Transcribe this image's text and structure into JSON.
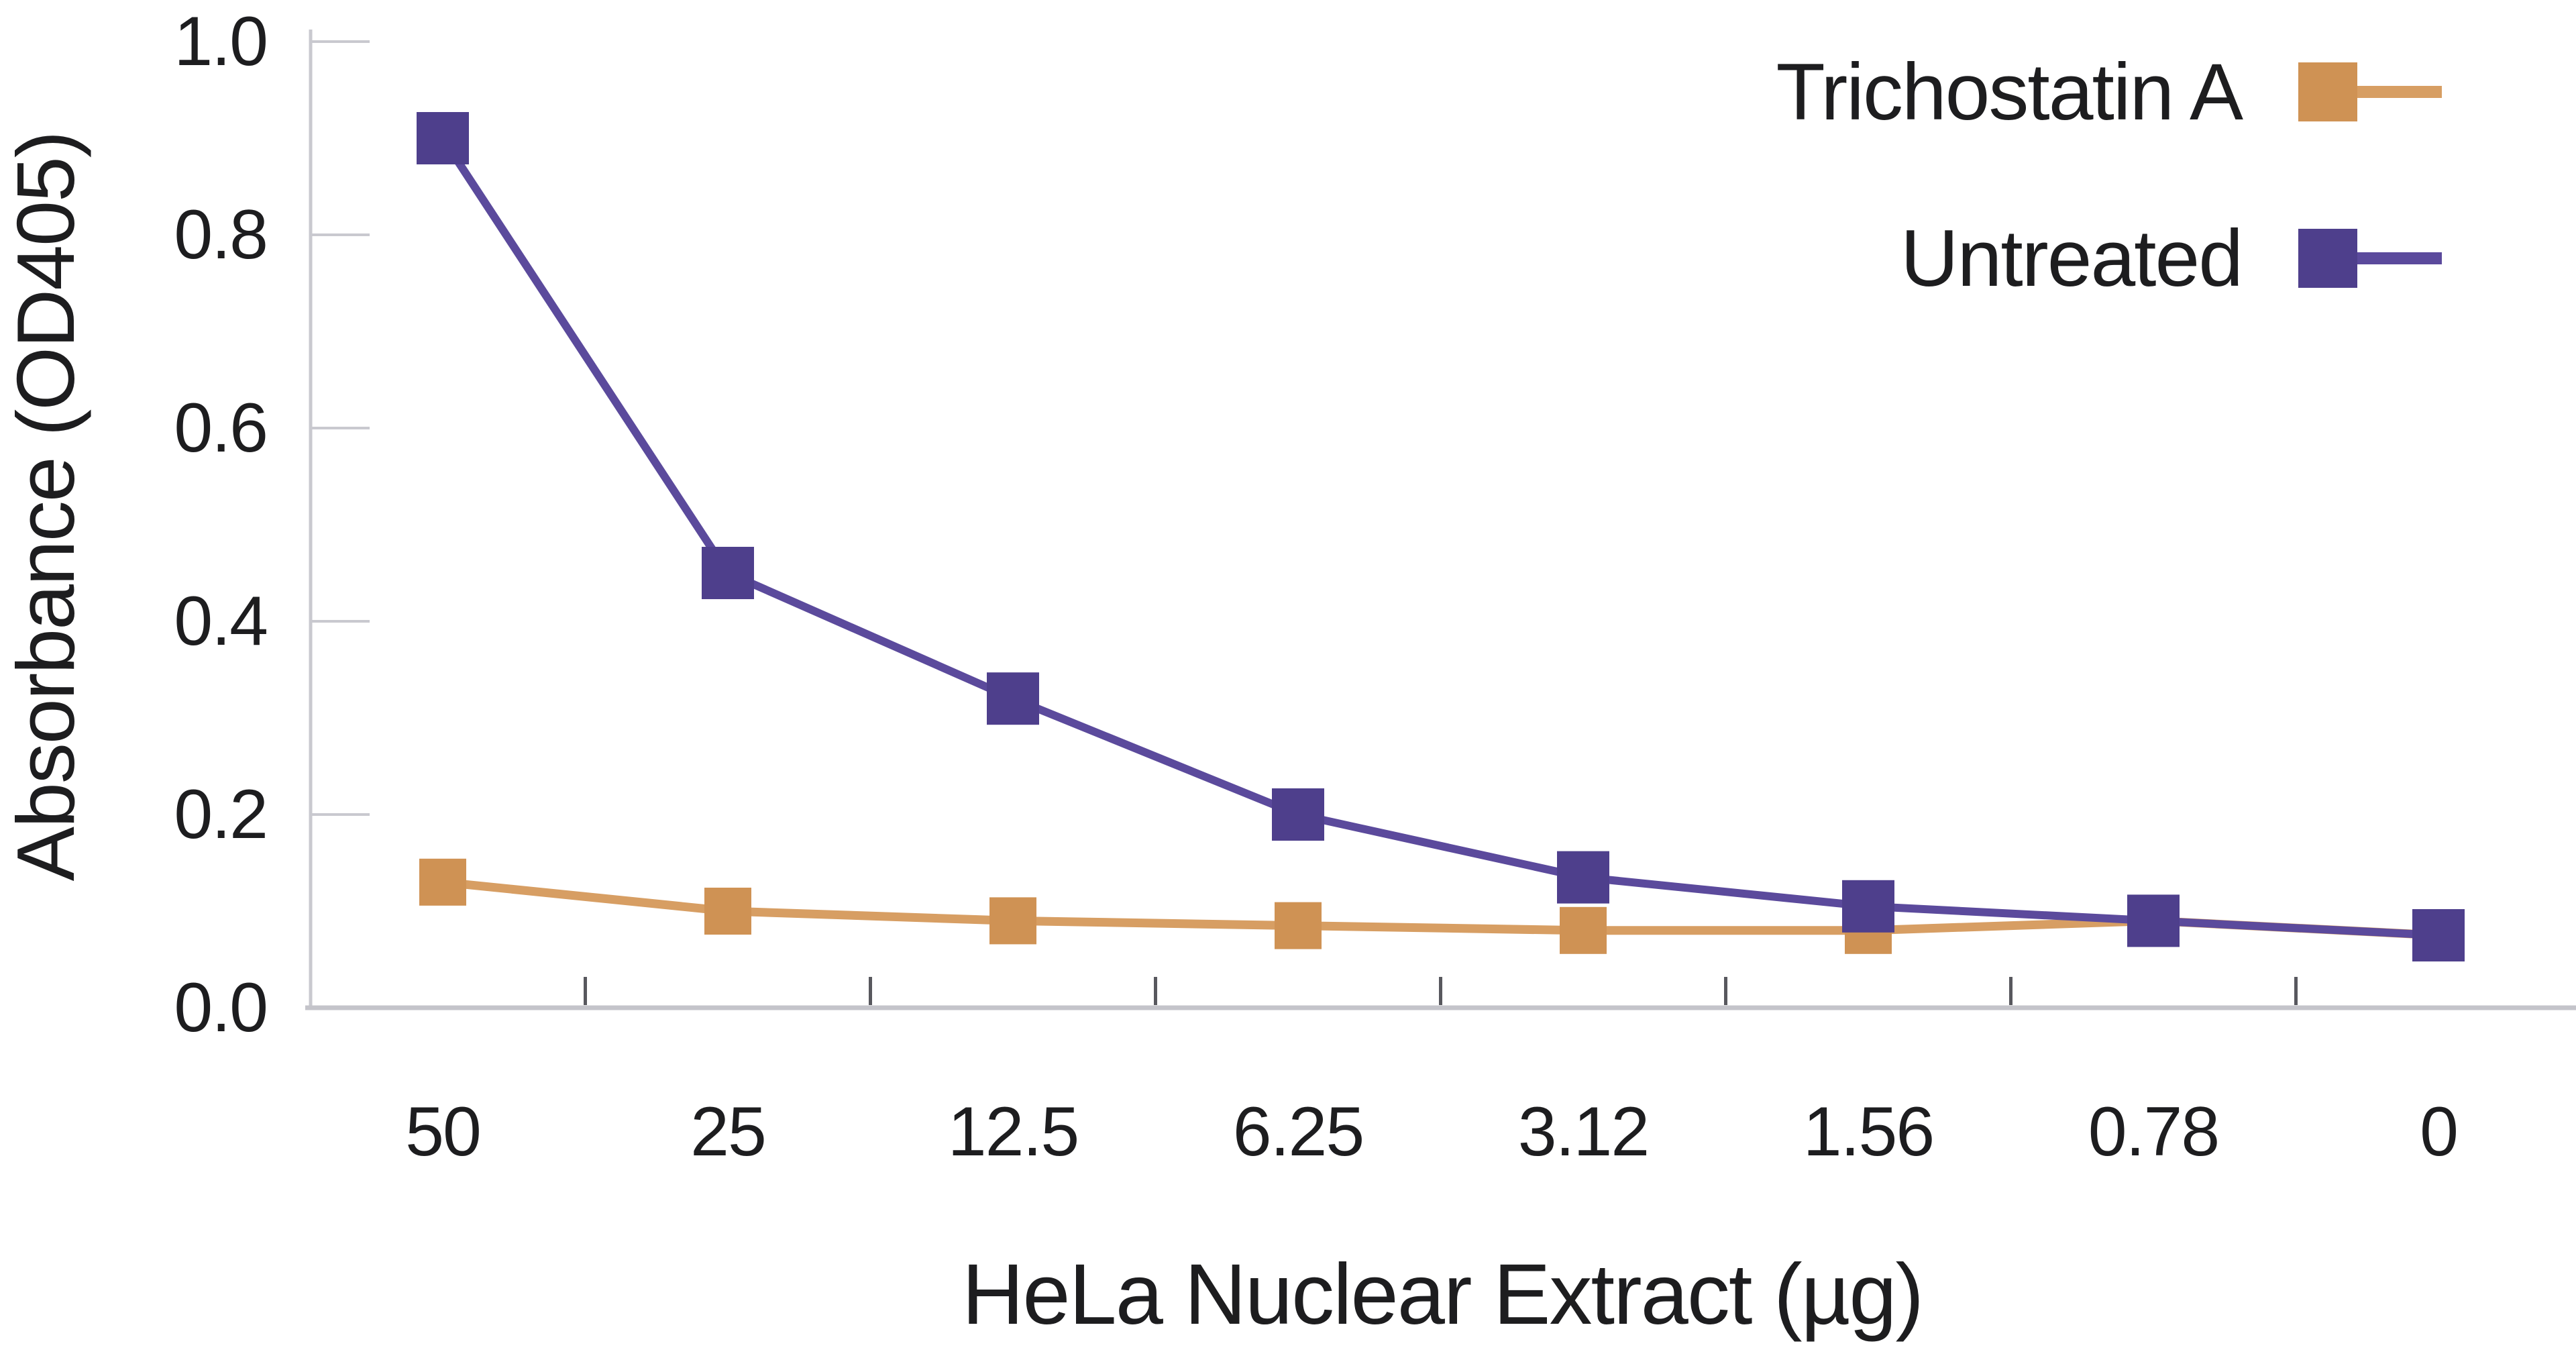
{
  "chart_data": {
    "type": "line",
    "title": "",
    "ylabel": "Absorbance (OD405)",
    "xlabel": "HeLa Nuclear Extract (µg)",
    "categories": [
      "50",
      "25",
      "12.5",
      "6.25",
      "3.12",
      "1.56",
      "0.78",
      "0"
    ],
    "ytick_labels": [
      "1.0",
      "0.8",
      "0.6",
      "0.4",
      "0.2",
      "0.0"
    ],
    "ylim": [
      0.0,
      1.0
    ],
    "grid": false,
    "legend_position": "top-right",
    "series": [
      {
        "name": "Trichostatin A",
        "marker": "square",
        "marker_color": "#cf9254",
        "line_color": "#d79e63",
        "values": [
          0.13,
          0.1,
          0.09,
          0.085,
          0.08,
          0.08,
          0.09,
          0.075
        ]
      },
      {
        "name": "Untreated",
        "marker": "square",
        "marker_color": "#4e3f8c",
        "line_color": "#5b4a9c",
        "values": [
          0.9,
          0.45,
          0.32,
          0.2,
          0.135,
          0.105,
          0.09,
          0.075
        ]
      }
    ],
    "colors": {
      "axis": "#c9c9cf",
      "baseline": "#c4c4ca",
      "x_tick": "#58585e",
      "text": "#1d1d1f",
      "background": "#ffffff"
    }
  }
}
